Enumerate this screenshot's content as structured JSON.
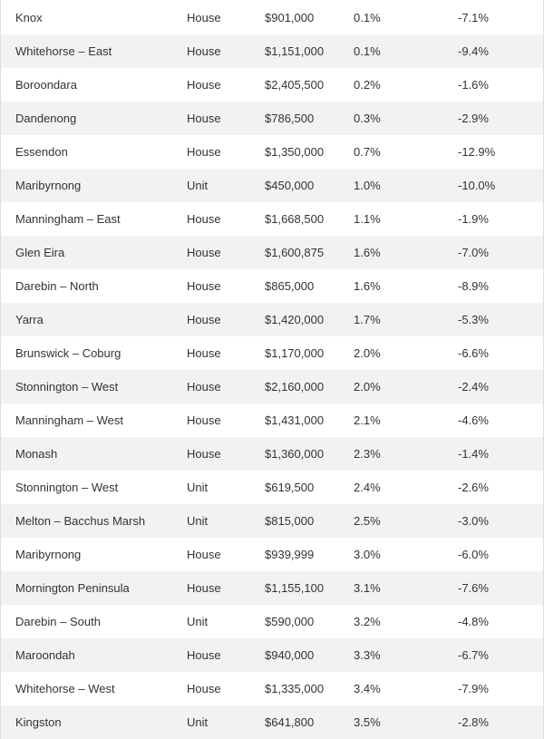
{
  "table": {
    "rows": [
      {
        "region": "Knox",
        "type": "House",
        "median": "$901,000",
        "change_a": "0.1%",
        "change_b": "-7.1%"
      },
      {
        "region": "Whitehorse – East",
        "type": "House",
        "median": "$1,151,000",
        "change_a": "0.1%",
        "change_b": "-9.4%"
      },
      {
        "region": "Boroondara",
        "type": "House",
        "median": "$2,405,500",
        "change_a": "0.2%",
        "change_b": "-1.6%"
      },
      {
        "region": "Dandenong",
        "type": "House",
        "median": "$786,500",
        "change_a": "0.3%",
        "change_b": "-2.9%"
      },
      {
        "region": "Essendon",
        "type": "House",
        "median": "$1,350,000",
        "change_a": "0.7%",
        "change_b": "-12.9%"
      },
      {
        "region": "Maribyrnong",
        "type": "Unit",
        "median": "$450,000",
        "change_a": "1.0%",
        "change_b": "-10.0%"
      },
      {
        "region": "Manningham – East",
        "type": "House",
        "median": "$1,668,500",
        "change_a": "1.1%",
        "change_b": "-1.9%"
      },
      {
        "region": "Glen Eira",
        "type": "House",
        "median": "$1,600,875",
        "change_a": "1.6%",
        "change_b": "-7.0%"
      },
      {
        "region": "Darebin – North",
        "type": "House",
        "median": "$865,000",
        "change_a": "1.6%",
        "change_b": "-8.9%"
      },
      {
        "region": "Yarra",
        "type": "House",
        "median": "$1,420,000",
        "change_a": "1.7%",
        "change_b": "-5.3%"
      },
      {
        "region": "Brunswick – Coburg",
        "type": "House",
        "median": "$1,170,000",
        "change_a": "2.0%",
        "change_b": "-6.6%"
      },
      {
        "region": "Stonnington – West",
        "type": "House",
        "median": "$2,160,000",
        "change_a": "2.0%",
        "change_b": "-2.4%"
      },
      {
        "region": "Manningham – West",
        "type": "House",
        "median": "$1,431,000",
        "change_a": "2.1%",
        "change_b": "-4.6%"
      },
      {
        "region": "Monash",
        "type": "House",
        "median": "$1,360,000",
        "change_a": "2.3%",
        "change_b": "-1.4%"
      },
      {
        "region": "Stonnington – West",
        "type": "Unit",
        "median": "$619,500",
        "change_a": "2.4%",
        "change_b": "-2.6%"
      },
      {
        "region": "Melton – Bacchus Marsh",
        "type": "Unit",
        "median": "$815,000",
        "change_a": "2.5%",
        "change_b": "-3.0%"
      },
      {
        "region": "Maribyrnong",
        "type": "House",
        "median": "$939,999",
        "change_a": "3.0%",
        "change_b": "-6.0%"
      },
      {
        "region": "Mornington Peninsula",
        "type": "House",
        "median": "$1,155,100",
        "change_a": "3.1%",
        "change_b": "-7.6%"
      },
      {
        "region": "Darebin – South",
        "type": "Unit",
        "median": "$590,000",
        "change_a": "3.2%",
        "change_b": "-4.8%"
      },
      {
        "region": "Maroondah",
        "type": "House",
        "median": "$940,000",
        "change_a": "3.3%",
        "change_b": "-6.7%"
      },
      {
        "region": "Whitehorse – West",
        "type": "House",
        "median": "$1,335,000",
        "change_a": "3.4%",
        "change_b": "-7.9%"
      },
      {
        "region": "Kingston",
        "type": "Unit",
        "median": "$641,800",
        "change_a": "3.5%",
        "change_b": "-2.8%"
      }
    ]
  },
  "colors": {
    "text": "#333333",
    "row_shade": "#f2f2f2",
    "background": "#ffffff"
  }
}
